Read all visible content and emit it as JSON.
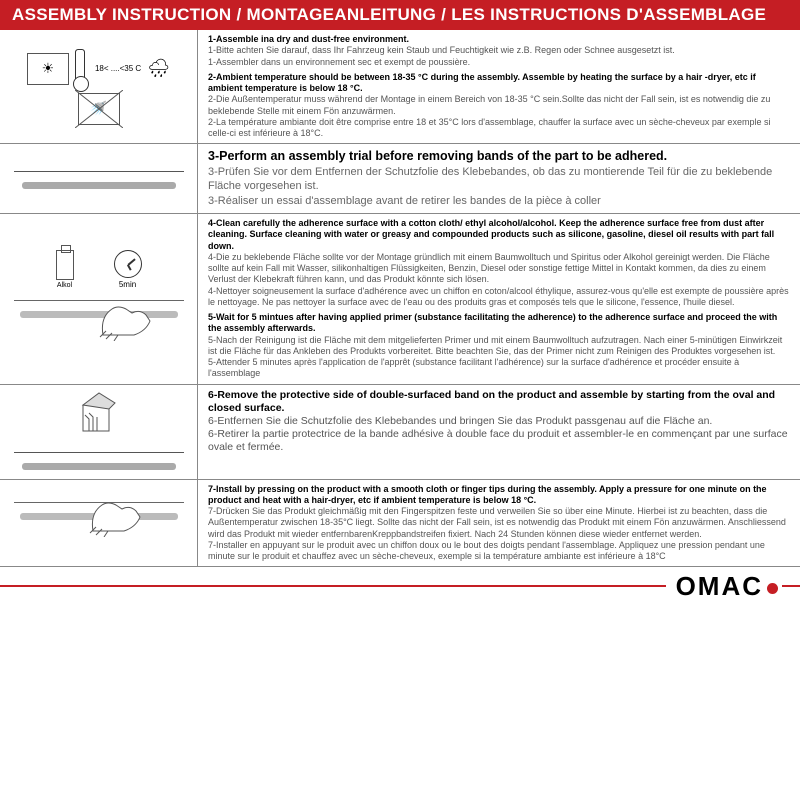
{
  "colors": {
    "accent": "#c51e24",
    "text": "#000000",
    "muted": "#555555",
    "border": "#888888",
    "bg": "#ffffff"
  },
  "title": "ASSEMBLY INSTRUCTION / MONTAGEANLEITUNG / LES INSTRUCTIONS D'ASSEMBLAGE",
  "sections": [
    {
      "illus": {
        "type": "temp",
        "temp_label": "18< ....<35 C"
      },
      "steps": [
        {
          "bold": "1-Assemble ina dry and dust-free environment.",
          "tr": [
            "1-Bitte achten Sie darauf, dass Ihr Fahrzeug kein Staub und Feuchtigkeit wie z.B. Regen oder Schnee ausgesetzt ist.",
            "1-Assembler dans un environnement sec et exempt de poussière."
          ]
        },
        {
          "bold": "2-Ambient temperature should be between 18-35 °C  during the assembly. Assemble by heating the surface by a hair -dryer, etc if ambient temperature is below 18 °C.",
          "tr": [
            "2-Die Außentemperatur muss während der Montage in einem Bereich von 18-35 °C  sein.Sollte das nicht der Fall sein, ist es notwendig die zu beklebende Stelle mit einem Fön anzuwärmen.",
            "2-La température ambiante doit être comprise entre 18 et 35°C lors d'assemblage, chauffer la surface avec un sèche-cheveux par exemple si celle-ci est inférieure à 18°C."
          ]
        }
      ]
    },
    {
      "illus": {
        "type": "bar"
      },
      "big": true,
      "steps": [
        {
          "bold": "3-Perform an assembly trial before removing bands of the part to be adhered.",
          "tr": [
            "3-Prüfen Sie vor dem Entfernen der Schutzfolie des Klebebandes, ob das zu montierende Teil für die zu beklebende Fläche vorgesehen ist.",
            "3-Réaliser un essai d'assemblage avant de retirer les bandes de la pièce à coller"
          ]
        }
      ]
    },
    {
      "illus": {
        "type": "clean",
        "bottle_label": "Alkol",
        "clock_label": "5min"
      },
      "steps": [
        {
          "bold": "4-Clean carefully the adherence surface with a cotton cloth/ ethyl alcohol/alcohol. Keep the adherence surface free from dust after cleaning. Surface cleaning with water or greasy and compounded products such as silicone, gasoline, diesel oil results with part fall down.",
          "tr": [
            "4-Die zu beklebende Fläche sollte vor der Montage gründlich mit einem Baumwolltuch und Spiritus oder Alkohol gereinigt werden. Die Fläche sollte auf kein Fall mit Wasser, silikonhaltigen Flüssigkeiten, Benzin, Diesel oder sonstige fettige Mittel in Kontakt kommen, da dies zu einem Verlust der Klebekraft führen kann, und das Produkt könnte sich lösen.",
            "4-Nettoyer soigneusement la surface d'adhérence avec un chiffon en coton/alcool éthylique, assurez-vous qu'elle est exempte de poussière après le nettoyage. Ne pas nettoyer la surface avec de l'eau ou des produits gras et composés tels que le silicone, l'essence, l'huile diesel."
          ]
        },
        {
          "bold": "5-Wait for 5 mintues after having applied primer (substance facilitating the adherence) to the adherence surface and proceed the with the assembly afterwards.",
          "tr": [
            "5-Nach der Reinigung ist die Fläche mit dem mitgelieferten Primer und mit einem Baumwolltuch aufzutragen. Nach einer 5-minütigen Einwirkzeit ist die Fläche für das Ankleben des Produkts vorbereitet. Bitte beachten Sie, das der Primer nicht zum Reinigen des Produktes vorgesehen ist.",
            "5-Attender 5 minutes après l'application de l'apprêt (substance facilitant l'adhérence) sur la surface d'adhérence et procéder ensuite à l'assemblage"
          ]
        }
      ]
    },
    {
      "illus": {
        "type": "peel"
      },
      "steps": [
        {
          "bold": "6-Remove the protective side of double-surfaced band on the product and assemble by starting from the oval and closed surface.",
          "tr": [
            "6-Entfernen Sie die Schutzfolie des Klebebandes und bringen Sie das Produkt passgenau auf die Fläche an.",
            "6-Retirer la partie protectrice de la bande adhésive à double face du produit et assembler-le en commençant par une surface ovale et fermée."
          ]
        }
      ],
      "medium": true
    },
    {
      "illus": {
        "type": "press"
      },
      "steps": [
        {
          "bold": "7-Install by pressing on the product with a smooth cloth or finger tips during the assembly. Apply a pressure for one minute on the product and heat with a hair-dryer, etc if ambient temperature is below 18 °C.",
          "tr": [
            "7-Drücken Sie das Produkt gleichmäßig mit den Fingerspitzen feste und verweilen Sie so über eine Minute. Hierbei ist zu beachten, dass die Außentemperatur zwischen 18-35°C liegt. Sollte das nicht der Fall sein, ist es notwendig das Produkt mit einem Fön anzuwärmen. Anschliessend wird das Produkt mit wieder entfernbarenKreppbandstreifen fixiert. Nach 24 Stunden können diese wieder entfernet werden.",
            "7-Installer en appuyant sur le produit avec un chiffon doux ou le bout des doigts pendant l'assemblage. Appliquez une pression pendant une minute sur le produit et chauffez avec un sèche-cheveux, exemple si la température ambiante est inférieure à 18°C"
          ]
        }
      ]
    }
  ],
  "logo": "OMAC"
}
